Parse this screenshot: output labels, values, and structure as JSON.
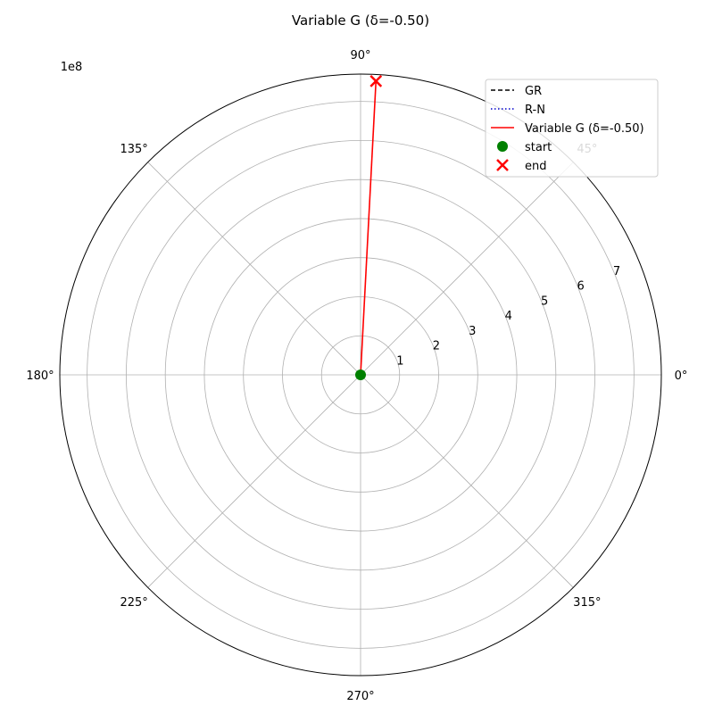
{
  "chart_data": {
    "type": "polar-line",
    "title": "Variable G (δ=-0.50)",
    "radial_axis": {
      "offset_label": "1e8",
      "ticks": [
        "1",
        "2",
        "3",
        "4",
        "5",
        "6",
        "7"
      ],
      "tick_values": [
        1,
        2,
        3,
        4,
        5,
        6,
        7
      ],
      "range": [
        0,
        7.7
      ],
      "grid": true
    },
    "angular_axis": {
      "ticks": [
        "0°",
        "45°",
        "90°",
        "135°",
        "180°",
        "225°",
        "270°",
        "315°"
      ],
      "tick_values": [
        0,
        45,
        90,
        135,
        180,
        225,
        270,
        315
      ],
      "grid": true
    },
    "legend": {
      "placement": "upper-right",
      "entries": [
        {
          "label": "GR",
          "color": "#000000",
          "style": "dashed"
        },
        {
          "label": "R-N",
          "color": "#0000cc",
          "style": "dotted"
        },
        {
          "label": "Variable G (δ=-0.50)",
          "color": "#ff0000",
          "style": "solid"
        },
        {
          "label": "start",
          "color": "#008000",
          "style": "circle-marker"
        },
        {
          "label": "end",
          "color": "#ff0000",
          "style": "x-marker"
        }
      ]
    },
    "series": [
      {
        "name": "Variable G (δ=-0.50)",
        "color": "#ff0000",
        "style": "solid",
        "theta_deg": [
          87,
          87
        ],
        "r": [
          0,
          7.53
        ]
      }
    ],
    "markers": {
      "start": {
        "theta_deg": 0,
        "r": 0,
        "color": "#008000"
      },
      "end": {
        "theta_deg": 87,
        "r": 7.53,
        "color": "#ff0000"
      }
    }
  }
}
